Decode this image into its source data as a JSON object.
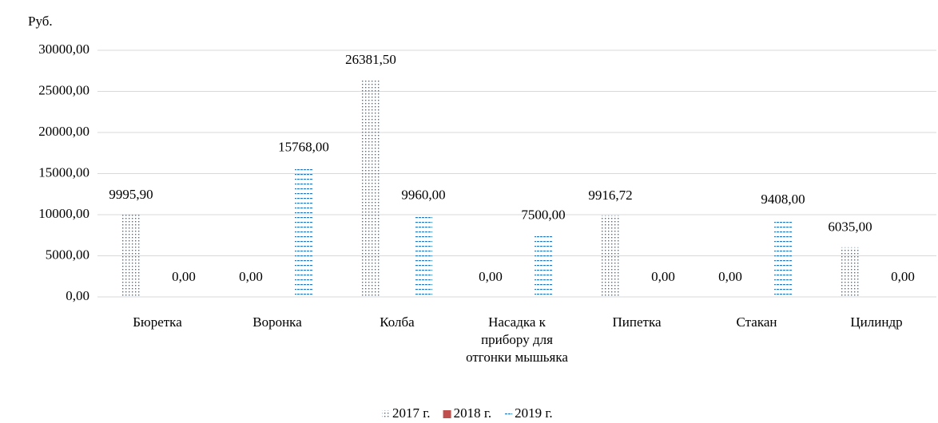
{
  "chart_data": {
    "type": "bar",
    "y_label": "Руб.",
    "categories": [
      "Бюретка",
      "Воронка",
      "Колба",
      "Насадка к прибору для отгонки мышьяка",
      "Пипетка",
      "Стакан",
      "Цилиндр"
    ],
    "series": [
      {
        "name": "2017 г.",
        "color": "#2e75b6",
        "pattern": "dots",
        "values": [
          9995.9,
          0,
          26381.5,
          0,
          9916.72,
          0,
          6035
        ],
        "value_labels": [
          "9995,90",
          "0,00",
          "26381,50",
          "0,00",
          "9916,72",
          "0,00",
          "6035,00"
        ]
      },
      {
        "name": "2018 г.",
        "color": "#c0504d",
        "pattern": "solid",
        "values": [
          null,
          null,
          null,
          null,
          null,
          null,
          null
        ]
      },
      {
        "name": "2019 г.",
        "color": "#2e75b6",
        "pattern": "dashes",
        "values": [
          0,
          15768,
          9960,
          7500,
          0,
          9408,
          0
        ],
        "value_labels": [
          "0,00",
          "15768,00",
          "9960,00",
          "7500,00",
          "0,00",
          "9408,00",
          "0,00"
        ]
      }
    ],
    "ylim": [
      0,
      30000
    ],
    "yticks": [
      {
        "value": 0,
        "label": "0,00"
      },
      {
        "value": 5000,
        "label": "5000,00"
      },
      {
        "value": 10000,
        "label": "10000,00"
      },
      {
        "value": 15000,
        "label": "15000,00"
      },
      {
        "value": 20000,
        "label": "20000,00"
      },
      {
        "value": 25000,
        "label": "25000,00"
      },
      {
        "value": 30000,
        "label": "30000,00"
      }
    ],
    "grid": true,
    "legend": "bottom"
  }
}
